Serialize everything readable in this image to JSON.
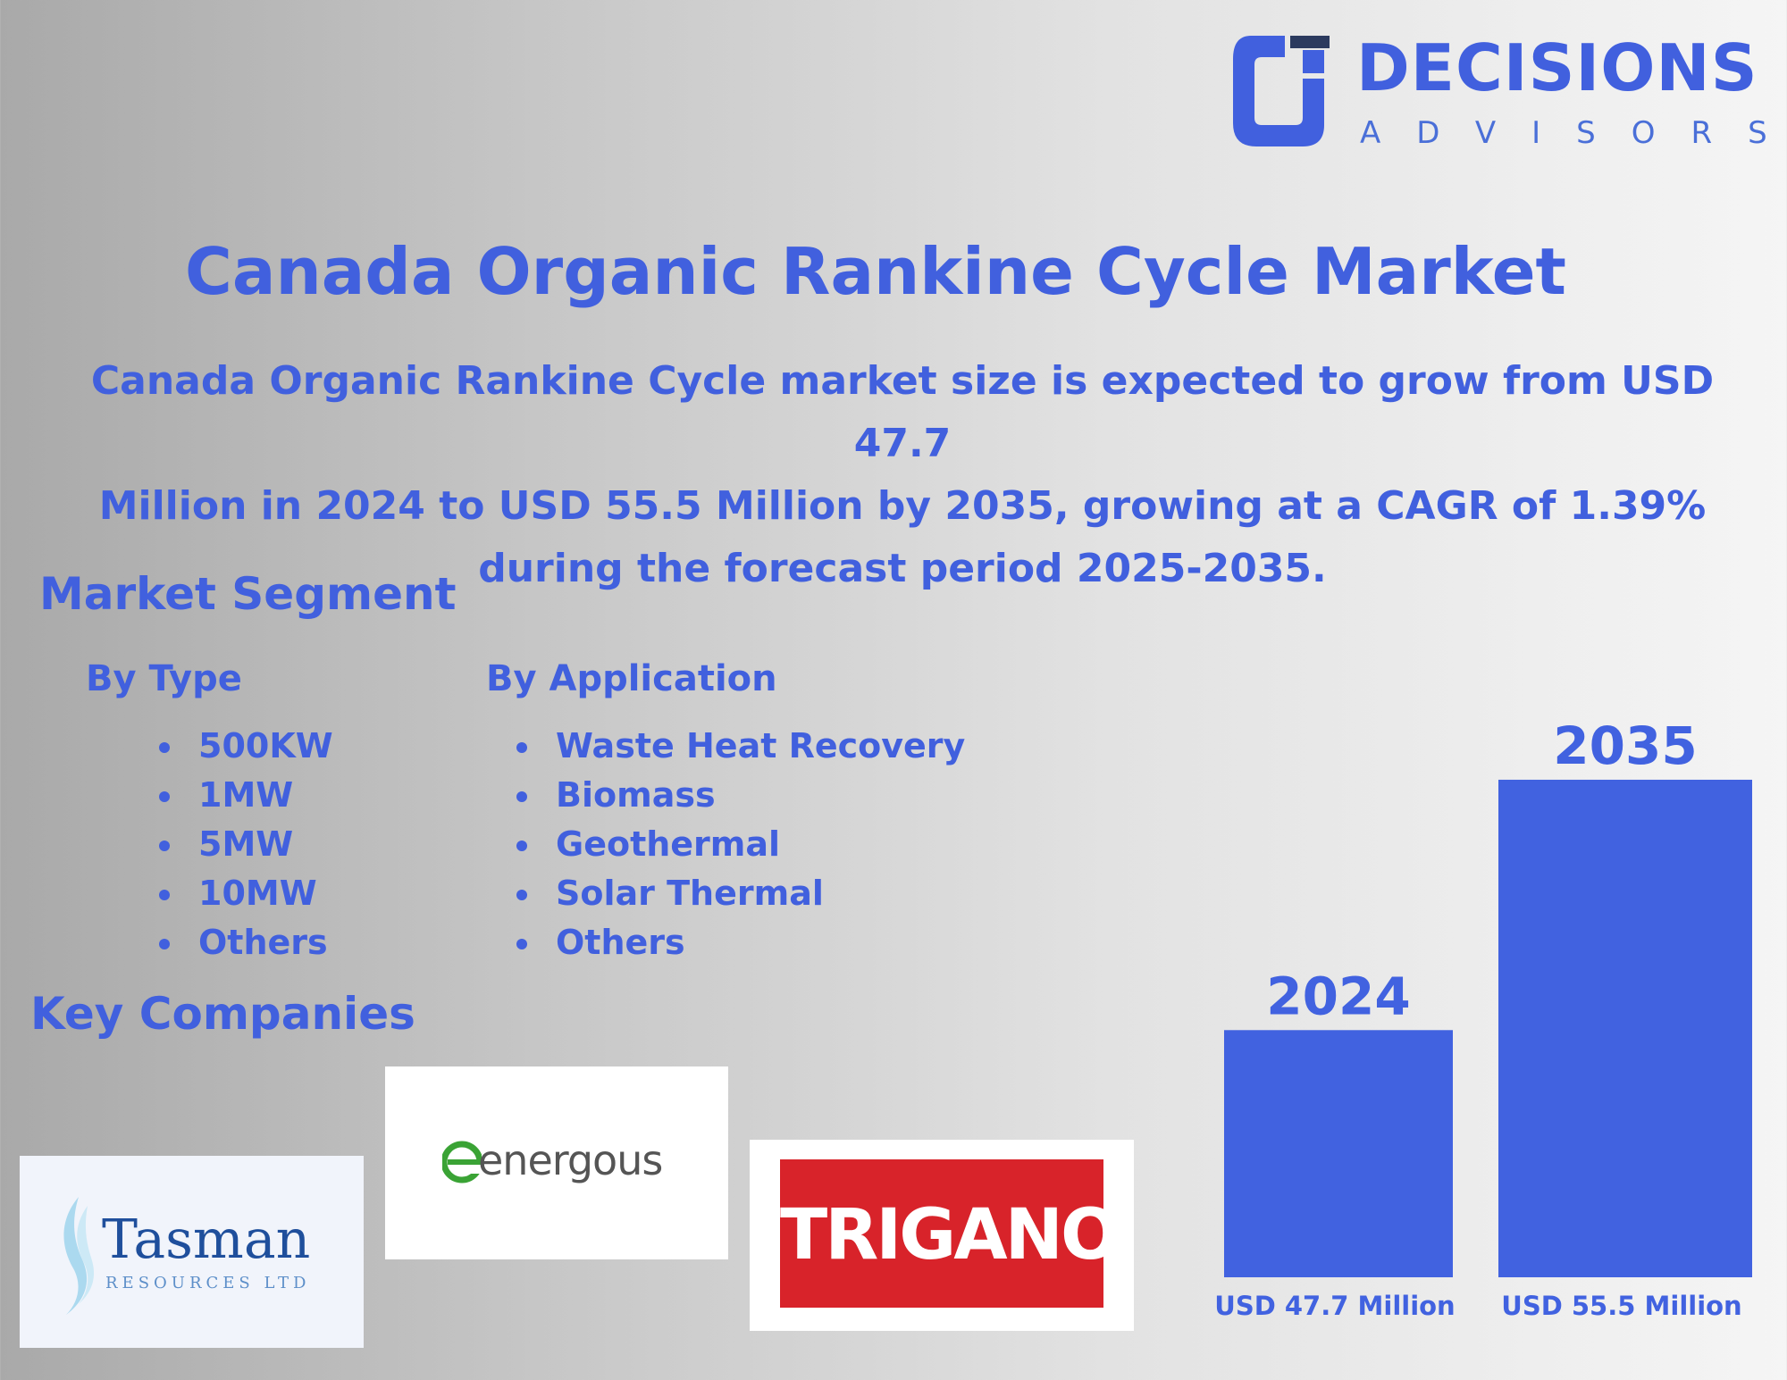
{
  "brand": {
    "name": "DECISIONS",
    "tagline": "ADVISORS"
  },
  "title": "Canada Organic Rankine Cycle Market",
  "summary": {
    "line1": "Canada Organic Rankine Cycle market size is expected to grow from USD 47.7",
    "line2": "Million in 2024 to USD 55.5 Million by 2035, growing at a CAGR of 1.39%",
    "line3": "during the forecast period 2025-2035."
  },
  "segment": {
    "title": "Market Segment",
    "by_type": {
      "heading": "By Type",
      "items": [
        "500KW",
        "1MW",
        "5MW",
        "10MW",
        "Others"
      ]
    },
    "by_application": {
      "heading": "By Application",
      "items": [
        "Waste Heat Recovery",
        "Biomass",
        "Geothermal",
        "Solar Thermal",
        "Others"
      ]
    }
  },
  "companies": {
    "title": "Key Companies",
    "tasman": {
      "name": "Tasman",
      "subtitle": "RESOURCES LTD"
    },
    "energous": {
      "name": "energous"
    },
    "trigano": {
      "name": "TRIGANO"
    }
  },
  "colors": {
    "accent": "#4160de",
    "bar": "#4162e0"
  },
  "chart_data": {
    "type": "bar",
    "categories": [
      "2024",
      "2035"
    ],
    "values": [
      47.7,
      55.5
    ],
    "value_labels": [
      "USD 47.7 Million",
      "USD 55.5 Million"
    ],
    "unit": "USD Million",
    "ylim": [
      40,
      56
    ],
    "grid": false
  }
}
